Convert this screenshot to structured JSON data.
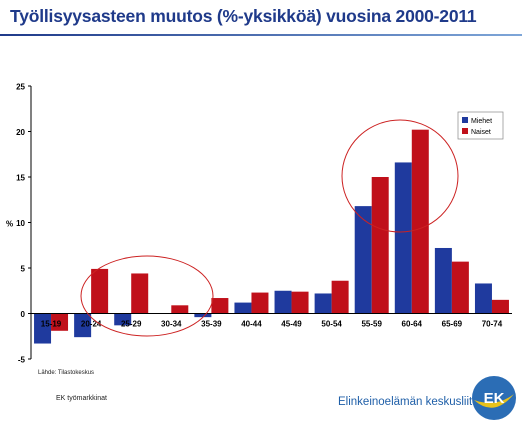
{
  "header": {
    "title": "Työllisyysasteen muutos (%-yksikköä) vuosina 2000-2011"
  },
  "footer": {
    "source": "Lähde: Tilastokeskus",
    "left": "EK työmarkkinat",
    "organization": "Elinkeinoelämän keskusliitto",
    "logo_text": "EK"
  },
  "colors": {
    "miehet": "#1f3a9e",
    "naiset": "#c0101a",
    "circle": "#cc2222",
    "title": "#1f3a8a"
  },
  "chart_data": {
    "type": "bar",
    "title": "Työllisyysasteen muutos (%-yksikköä) vuosina 2000-2011",
    "ylabel": "%",
    "xlabel": "",
    "ylim": [
      -5,
      25
    ],
    "yticks": [
      -5,
      0,
      5,
      10,
      15,
      20,
      25
    ],
    "grid": false,
    "legend": "right",
    "categories": [
      "15-19",
      "20-24",
      "25-29",
      "30-34",
      "35-39",
      "40-44",
      "45-49",
      "50-54",
      "55-59",
      "60-64",
      "65-69",
      "70-74"
    ],
    "series": [
      {
        "name": "Miehet",
        "values": [
          -3.3,
          -2.6,
          -1.3,
          0.0,
          -0.4,
          1.2,
          2.5,
          2.2,
          11.8,
          16.6,
          7.2,
          3.3
        ]
      },
      {
        "name": "Naiset",
        "values": [
          -1.9,
          4.9,
          4.4,
          0.9,
          1.7,
          2.3,
          2.4,
          3.6,
          15.0,
          20.2,
          5.7,
          1.5
        ]
      }
    ]
  }
}
